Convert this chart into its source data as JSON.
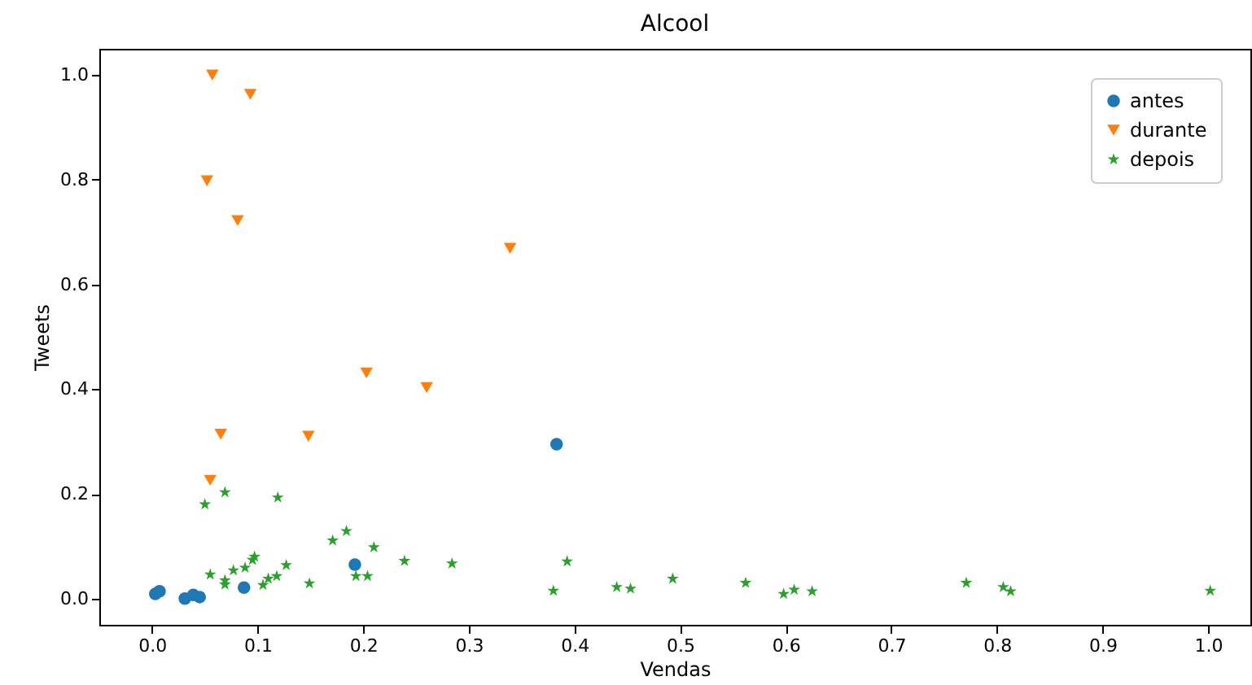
{
  "chart_data": {
    "type": "scatter",
    "title": "Alcool",
    "xlabel": "Vendas",
    "ylabel": "Tweets",
    "xlim": [
      -0.05,
      1.04
    ],
    "ylim": [
      -0.05,
      1.05
    ],
    "xticks": [
      {
        "value": 0,
        "label": "0.0"
      },
      {
        "value": 0.1,
        "label": "0.1"
      },
      {
        "value": 0.2,
        "label": "0.2"
      },
      {
        "value": 0.3,
        "label": "0.3"
      },
      {
        "value": 0.4,
        "label": "0.4"
      },
      {
        "value": 0.5,
        "label": "0.5"
      },
      {
        "value": 0.6,
        "label": "0.6"
      },
      {
        "value": 0.7,
        "label": "0.7"
      },
      {
        "value": 0.8,
        "label": "0.8"
      },
      {
        "value": 0.9,
        "label": "0.9"
      },
      {
        "value": 1,
        "label": "1.0"
      }
    ],
    "yticks": [
      {
        "value": 0,
        "label": "0.0"
      },
      {
        "value": 0.2,
        "label": "0.2"
      },
      {
        "value": 0.4,
        "label": "0.4"
      },
      {
        "value": 0.6,
        "label": "0.6"
      },
      {
        "value": 0.8,
        "label": "0.8"
      },
      {
        "value": 1,
        "label": "1.0"
      }
    ],
    "grid": false,
    "legend": "top right",
    "series": [
      {
        "name": "antes",
        "color": "#1f77b4",
        "marker": "circle",
        "x": [
          0.003,
          0.007,
          0.031,
          0.039,
          0.045,
          0.087,
          0.192,
          0.383
        ],
        "values": [
          0.009,
          0.014,
          0.0,
          0.007,
          0.003,
          0.021,
          0.065,
          0.295
        ]
      },
      {
        "name": "durante",
        "color": "#ff7f0e",
        "marker": "triangle",
        "x": [
          0.057,
          0.093,
          0.052,
          0.081,
          0.339,
          0.203,
          0.26,
          0.065,
          0.148,
          0.055
        ],
        "values": [
          1.0,
          0.963,
          0.798,
          0.722,
          0.669,
          0.431,
          0.403,
          0.314,
          0.31,
          0.226
        ]
      },
      {
        "name": "depois",
        "color": "#2ca02c",
        "marker": "star",
        "x": [
          0.05,
          0.069,
          0.119,
          0.171,
          0.184,
          0.21,
          0.239,
          0.055,
          0.069,
          0.069,
          0.077,
          0.088,
          0.095,
          0.097,
          0.105,
          0.11,
          0.118,
          0.127,
          0.149,
          0.193,
          0.204,
          0.284,
          0.38,
          0.393,
          0.44,
          0.453,
          0.493,
          0.562,
          0.598,
          0.608,
          0.625,
          0.771,
          0.806,
          0.813,
          1.002
        ],
        "values": [
          0.18,
          0.203,
          0.193,
          0.111,
          0.129,
          0.098,
          0.072,
          0.046,
          0.035,
          0.027,
          0.054,
          0.059,
          0.074,
          0.08,
          0.026,
          0.038,
          0.043,
          0.064,
          0.029,
          0.043,
          0.043,
          0.067,
          0.015,
          0.071,
          0.022,
          0.019,
          0.038,
          0.03,
          0.009,
          0.017,
          0.014,
          0.03,
          0.022,
          0.014,
          0.015
        ]
      }
    ]
  }
}
